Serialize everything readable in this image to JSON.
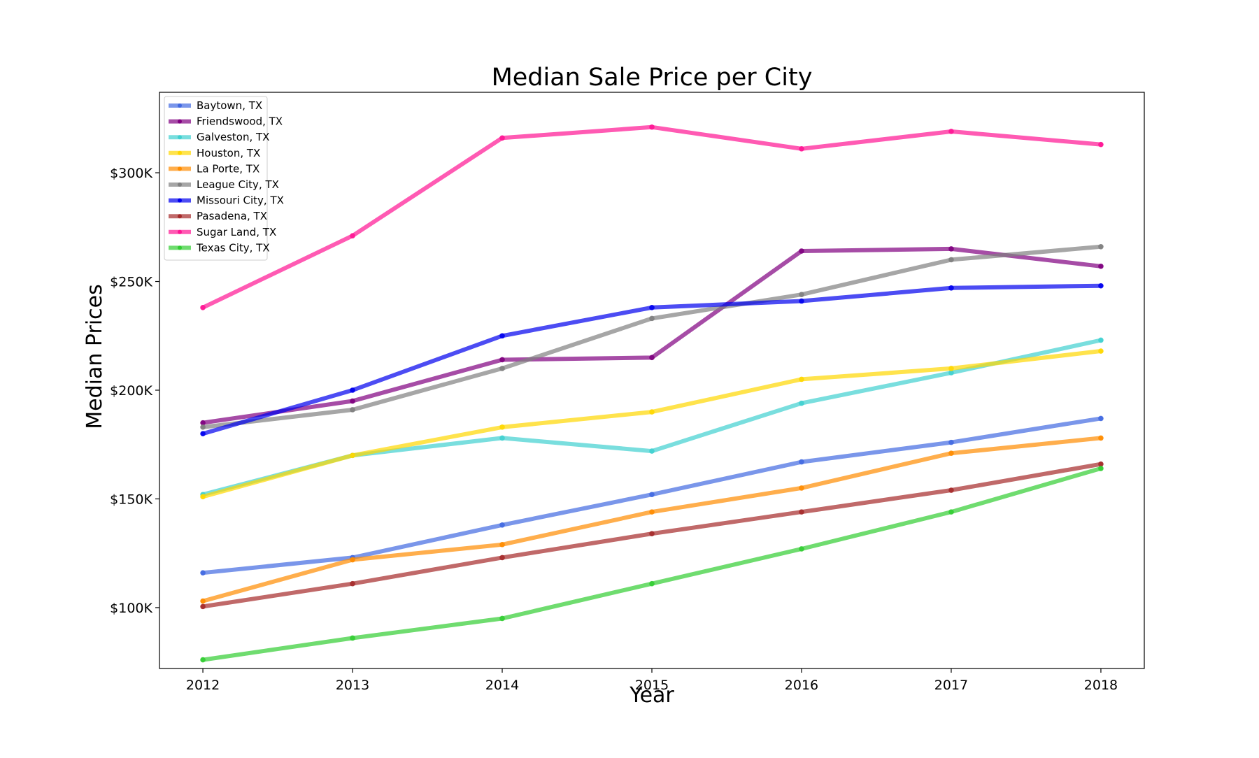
{
  "chart_data": {
    "type": "line",
    "title": "Median Sale Price per City",
    "xlabel": "Year",
    "ylabel": "Median Prices",
    "x": [
      2012,
      2013,
      2014,
      2015,
      2016,
      2017,
      2018
    ],
    "xlim": [
      2011.71,
      2018.29
    ],
    "ylim": [
      72000,
      337000
    ],
    "y_ticks": [
      100000,
      150000,
      200000,
      250000,
      300000
    ],
    "y_tick_labels": [
      "$100K",
      "$150K",
      "$200K",
      "$250K",
      "$300K"
    ],
    "grid": false,
    "legend_position": "upper-left",
    "series": [
      {
        "name": "Baytown, TX",
        "color": "#4169e1",
        "values": [
          116000,
          123000,
          138000,
          152000,
          167000,
          176000,
          187000
        ]
      },
      {
        "name": "Friendswood, TX",
        "color": "#800080",
        "values": [
          185000,
          195000,
          214000,
          215000,
          264000,
          265000,
          257000
        ]
      },
      {
        "name": "Galveston, TX",
        "color": "#40d0d0",
        "values": [
          152000,
          170000,
          178000,
          172000,
          194000,
          208000,
          223000
        ]
      },
      {
        "name": "Houston, TX",
        "color": "#ffd700",
        "values": [
          151000,
          170000,
          183000,
          190000,
          205000,
          210000,
          218000
        ]
      },
      {
        "name": "La Porte, TX",
        "color": "#ff8c00",
        "values": [
          103000,
          122000,
          129000,
          144000,
          155000,
          171000,
          178000
        ]
      },
      {
        "name": "League City, TX",
        "color": "#808080",
        "values": [
          183000,
          191000,
          210000,
          233000,
          244000,
          260000,
          266000
        ]
      },
      {
        "name": "Missouri City, TX",
        "color": "#0000ee",
        "values": [
          180000,
          200000,
          225000,
          238000,
          241000,
          247000,
          248000
        ]
      },
      {
        "name": "Pasadena, TX",
        "color": "#a52a2a",
        "values": [
          100500,
          111000,
          123000,
          134000,
          144000,
          154000,
          166000
        ]
      },
      {
        "name": "Sugar Land, TX",
        "color": "#ff1493",
        "values": [
          238000,
          271000,
          316000,
          321000,
          311000,
          319000,
          313000
        ]
      },
      {
        "name": "Texas City, TX",
        "color": "#32cd32",
        "values": [
          76000,
          86000,
          95000,
          111000,
          127000,
          144000,
          164000
        ]
      }
    ]
  }
}
